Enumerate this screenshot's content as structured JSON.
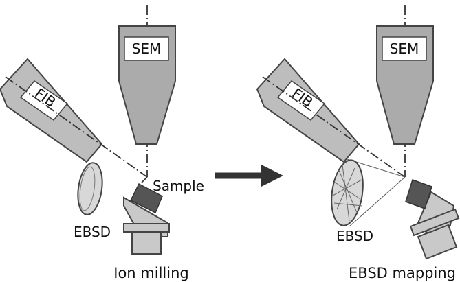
{
  "left_panel": {
    "sem_label": "SEM",
    "fib_label": "FIB",
    "sample_label": "Sample",
    "ebsd_label": "EBSD",
    "caption": "Ion milling"
  },
  "right_panel": {
    "sem_label": "SEM",
    "fib_label": "FIB",
    "ebsd_label": "EBSD",
    "caption": "EBSD mapping"
  }
}
